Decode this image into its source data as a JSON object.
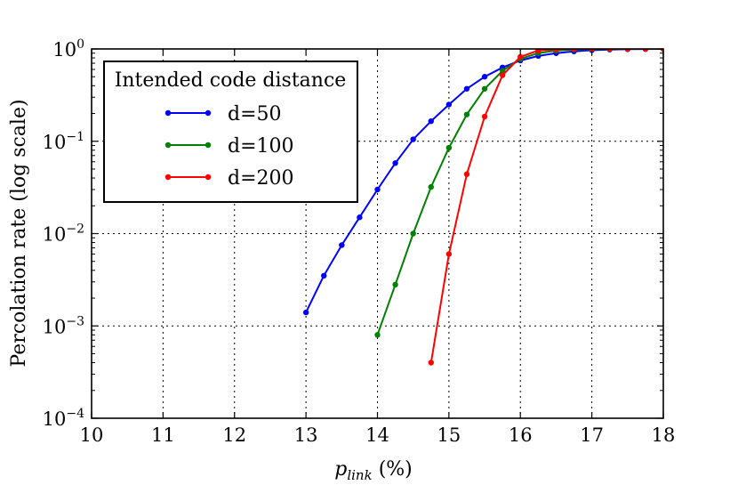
{
  "chart_data": {
    "type": "line",
    "title": "",
    "xlabel_main": "p",
    "xlabel_sub": "link",
    "xlabel_unit": "(%)",
    "ylabel": "Percolation rate (log scale)",
    "xlim": [
      10,
      18
    ],
    "ylim": [
      0.0001,
      1
    ],
    "yscale": "log",
    "grid": true,
    "x_ticks": [
      "10",
      "11",
      "12",
      "13",
      "14",
      "15",
      "16",
      "17",
      "18"
    ],
    "y_ticks": [
      {
        "base": "10",
        "exp": "−4",
        "value": 0.0001
      },
      {
        "base": "10",
        "exp": "−3",
        "value": 0.001
      },
      {
        "base": "10",
        "exp": "−2",
        "value": 0.01
      },
      {
        "base": "10",
        "exp": "−1",
        "value": 0.1
      },
      {
        "base": "10",
        "exp": "0",
        "value": 1
      }
    ],
    "legend": {
      "title": "Intended code distance",
      "position": "top-left"
    },
    "series": [
      {
        "name": "d=50",
        "color": "#0000ff",
        "x": [
          13.0,
          13.25,
          13.5,
          13.75,
          14.0,
          14.25,
          14.5,
          14.75,
          15.0,
          15.25,
          15.5,
          15.75,
          16.0,
          16.25,
          16.5,
          16.75,
          17.0,
          17.25,
          17.5,
          17.75,
          18.0
        ],
        "y": [
          0.0014,
          0.0035,
          0.0075,
          0.015,
          0.03,
          0.058,
          0.105,
          0.165,
          0.25,
          0.37,
          0.5,
          0.63,
          0.75,
          0.84,
          0.9,
          0.94,
          0.97,
          0.985,
          0.993,
          0.997,
          0.999
        ]
      },
      {
        "name": "d=100",
        "color": "#008000",
        "x": [
          14.0,
          14.25,
          14.5,
          14.75,
          15.0,
          15.25,
          15.5,
          15.75,
          16.0,
          16.25,
          16.5,
          16.75,
          17.0,
          17.25,
          17.5,
          17.75,
          18.0
        ],
        "y": [
          0.0008,
          0.0028,
          0.01,
          0.032,
          0.085,
          0.195,
          0.37,
          0.58,
          0.78,
          0.9,
          0.96,
          0.985,
          0.995,
          0.998,
          0.999,
          1.0,
          1.0
        ]
      },
      {
        "name": "d=200",
        "color": "#ff0000",
        "x": [
          14.75,
          15.0,
          15.25,
          15.5,
          15.75,
          16.0,
          16.25,
          16.5,
          16.75,
          17.0,
          17.25,
          17.5,
          17.75,
          18.0
        ],
        "y": [
          0.0004,
          0.006,
          0.044,
          0.185,
          0.52,
          0.82,
          0.96,
          0.99,
          0.998,
          1.0,
          1.0,
          1.0,
          1.0,
          1.0
        ]
      }
    ]
  }
}
